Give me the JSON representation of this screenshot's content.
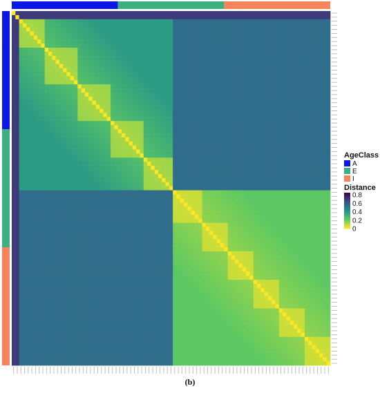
{
  "caption": "(b)",
  "chart_data": {
    "type": "heatmap",
    "title": "",
    "xlabel": "",
    "ylabel": "",
    "annotation_legend": {
      "title": "AgeClass",
      "entries": [
        {
          "label": "A",
          "color": "#0a17e6"
        },
        {
          "label": "E",
          "color": "#3cb17f"
        },
        {
          "label": "I",
          "color": "#f7835a"
        }
      ]
    },
    "color_legend": {
      "title": "Distance",
      "ticks": [
        0.8,
        0.6,
        0.4,
        0.2,
        0
      ],
      "tick_labels": [
        "0.8",
        "0.6",
        "0.4",
        "0.2",
        "0"
      ],
      "range": [
        0,
        0.85
      ],
      "colormap": "viridis"
    },
    "row_groups": [
      "A",
      "E",
      "I"
    ],
    "column_groups": [
      "A",
      "E",
      "I"
    ],
    "samples": {
      "A": 29,
      "E": 29,
      "I": 29
    },
    "cluster_blocks": [
      {
        "name": "top-left cluster",
        "start": 0,
        "end": 43,
        "within_distance": 0.35
      },
      {
        "name": "bottom-right cluster",
        "start": 44,
        "end": 86,
        "within_distance": 0.2
      }
    ],
    "between_cluster_distance": 0.55,
    "outlier_distance": 0.7,
    "diagonal_distance": 0
  }
}
